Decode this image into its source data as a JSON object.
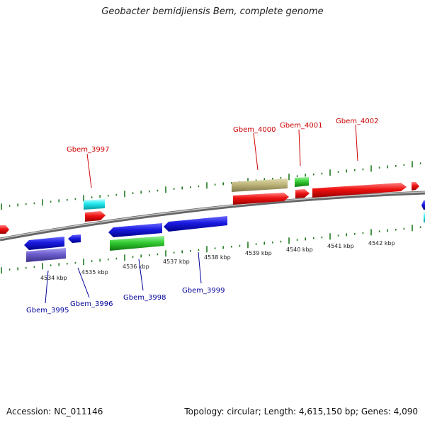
{
  "title": "Geobacter bemidjiensis Bem, complete genome",
  "footer": {
    "accession": "Accession: NC_011146",
    "topology": "Topology: circular; Length: 4,615,150 bp; Genes: 4,090"
  },
  "colors": {
    "forward_label": "#cc0000",
    "reverse_label": "#000099",
    "tick": "#1f7a1f",
    "backbone": "#888888"
  },
  "scale": {
    "kbp_labels": [
      "4534 kbp",
      "4535 kbp",
      "4536 kbp",
      "4537 kbp",
      "4538 kbp",
      "4539 kbp",
      "4540 kbp",
      "4541 kbp",
      "4542 kbp"
    ]
  },
  "gene_labels": {
    "forward": [
      "Gbem_3997",
      "Gbem_4000",
      "Gbem_4001",
      "Gbem_4002"
    ],
    "reverse": [
      "Gbem_3995",
      "Gbem_3996",
      "Gbem_3998",
      "Gbem_3999"
    ]
  }
}
